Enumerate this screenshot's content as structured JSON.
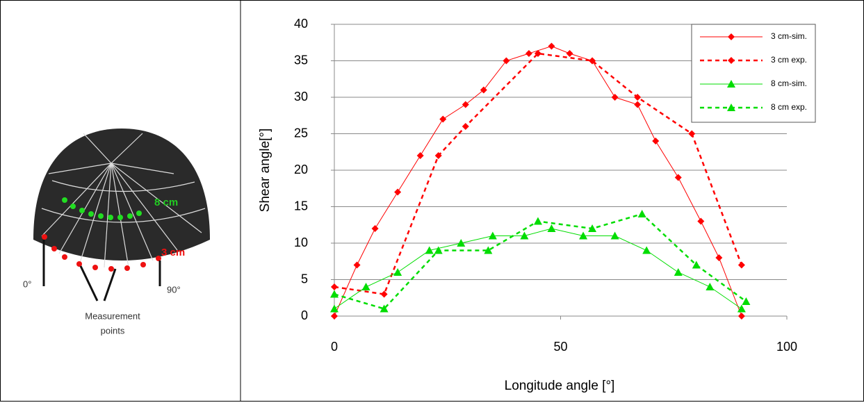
{
  "photo": {
    "label_8cm": "8 cm",
    "label_3cm": "3 cm",
    "label_0": "0°",
    "label_90": "90°",
    "caption": [
      "Measurement",
      "points"
    ]
  },
  "chart_data": {
    "type": "line",
    "xlabel": "Longitude angle [°]",
    "ylabel": "Shear angle[°]",
    "xlim": [
      0,
      100
    ],
    "xticks": [
      0,
      50,
      100
    ],
    "ylim": [
      0,
      40
    ],
    "yticks": [
      0,
      5,
      10,
      15,
      20,
      25,
      30,
      35,
      40
    ],
    "grid": true,
    "legend": "top-right",
    "series": [
      {
        "name": "3 cm-sim.",
        "color": "#ff0000",
        "dashed": false,
        "marker": "diamond",
        "x": [
          0,
          5,
          9,
          14,
          19,
          24,
          29,
          33,
          38,
          43,
          48,
          52,
          57,
          62,
          67,
          71,
          76,
          81,
          85,
          90
        ],
        "values": [
          0,
          7,
          12,
          17,
          22,
          27,
          29,
          31,
          35,
          36,
          37,
          36,
          35,
          30,
          29,
          24,
          19,
          13,
          8,
          0
        ]
      },
      {
        "name": "3 cm exp.",
        "color": "#ff0000",
        "dashed": true,
        "marker": "diamond",
        "x": [
          0,
          11,
          23,
          29,
          45,
          57,
          67,
          79,
          90
        ],
        "values": [
          4,
          3,
          22,
          26,
          36,
          35,
          30,
          25,
          7
        ]
      },
      {
        "name": "8 cm-sim.",
        "color": "#00dd00",
        "dashed": false,
        "marker": "triangle",
        "x": [
          0,
          7,
          14,
          21,
          28,
          35,
          42,
          48,
          55,
          62,
          69,
          76,
          83,
          90
        ],
        "values": [
          1,
          4,
          6,
          9,
          10,
          11,
          11,
          12,
          11,
          11,
          9,
          6,
          4,
          1
        ]
      },
      {
        "name": "8 cm exp.",
        "color": "#00dd00",
        "dashed": true,
        "marker": "triangle",
        "x": [
          0,
          11,
          23,
          34,
          45,
          57,
          68,
          80,
          91
        ],
        "values": [
          3,
          1,
          9,
          9,
          13,
          12,
          14,
          7,
          2
        ]
      }
    ]
  }
}
